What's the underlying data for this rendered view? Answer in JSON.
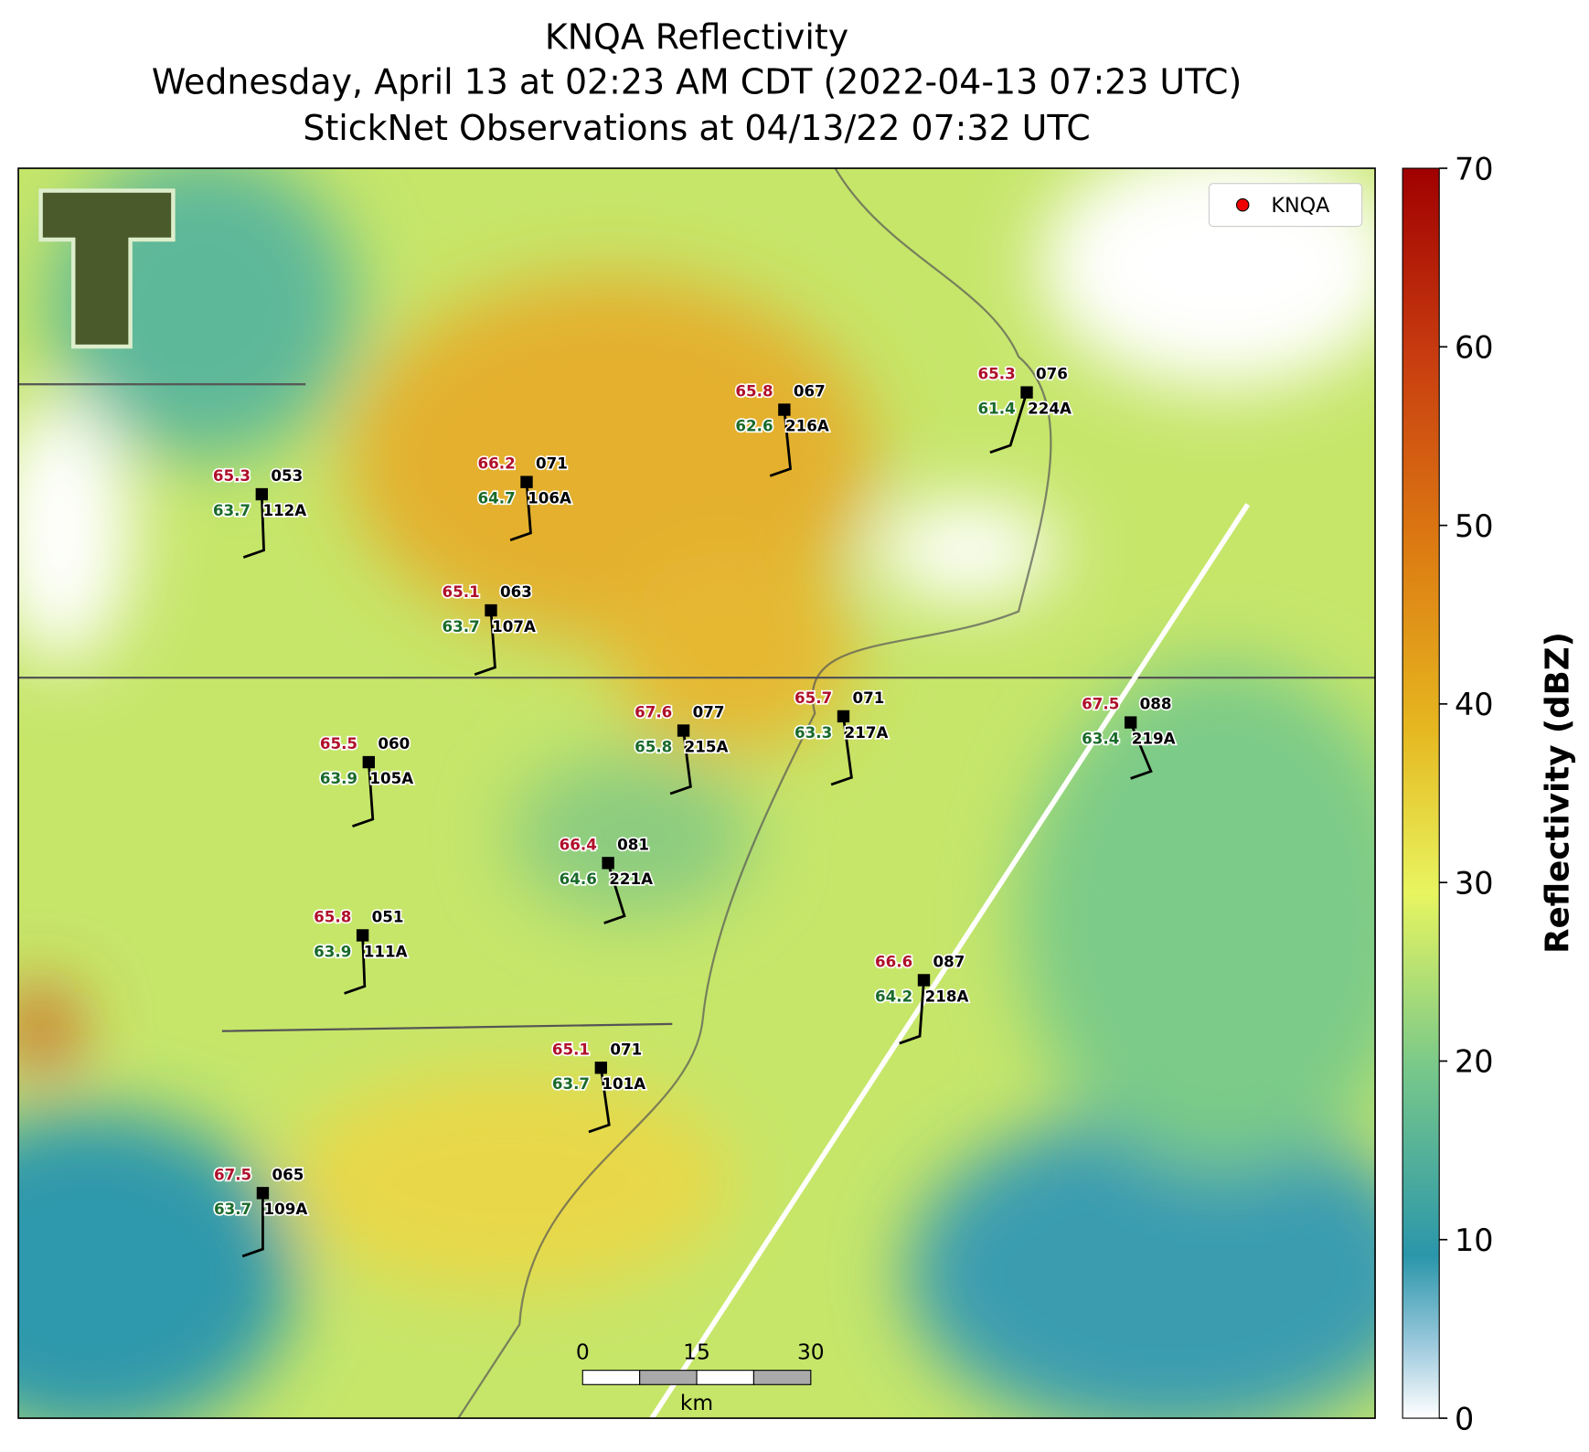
{
  "title": [
    "KNQA Reflectivity",
    "Wednesday, April 13 at 02:23 AM CDT (2022-04-13 07:23 UTC)",
    "StickNet Observations at 04/13/22 07:32 UTC"
  ],
  "legend": {
    "label": "KNQA"
  },
  "stations": [
    {
      "id": "112A",
      "temperature": 65.3,
      "dewpoint": 63.7,
      "pressure": "053"
    },
    {
      "id": "106A",
      "temperature": 66.2,
      "dewpoint": 64.7,
      "pressure": "071"
    },
    {
      "id": "107A",
      "temperature": 65.1,
      "dewpoint": 63.7,
      "pressure": "063"
    },
    {
      "id": "216A",
      "temperature": 65.8,
      "dewpoint": 62.6,
      "pressure": "067"
    },
    {
      "id": "224A",
      "temperature": 65.3,
      "dewpoint": 61.4,
      "pressure": "076"
    },
    {
      "id": "105A",
      "temperature": 65.5,
      "dewpoint": 63.9,
      "pressure": "060"
    },
    {
      "id": "215A",
      "temperature": 67.6,
      "dewpoint": 65.8,
      "pressure": "077"
    },
    {
      "id": "217A",
      "temperature": 65.7,
      "dewpoint": 63.3,
      "pressure": "071"
    },
    {
      "id": "219A",
      "temperature": 67.5,
      "dewpoint": 63.4,
      "pressure": "088"
    },
    {
      "id": "221A",
      "temperature": 66.4,
      "dewpoint": 64.6,
      "pressure": "081"
    },
    {
      "id": "111A",
      "temperature": 65.8,
      "dewpoint": 63.9,
      "pressure": "051"
    },
    {
      "id": "218A",
      "temperature": 66.6,
      "dewpoint": 64.2,
      "pressure": "087"
    },
    {
      "id": "101A",
      "temperature": 65.1,
      "dewpoint": 63.7,
      "pressure": "071"
    },
    {
      "id": "109A",
      "temperature": 67.5,
      "dewpoint": 63.7,
      "pressure": "065"
    }
  ],
  "colorbar": {
    "label": "Reflectivity (dBZ)",
    "lim": [
      0,
      70
    ],
    "ticks": [
      0,
      10,
      20,
      30,
      40,
      50,
      60,
      70
    ]
  },
  "scale_bar": {
    "ticks": [
      0,
      15,
      30
    ],
    "unit": "km"
  }
}
